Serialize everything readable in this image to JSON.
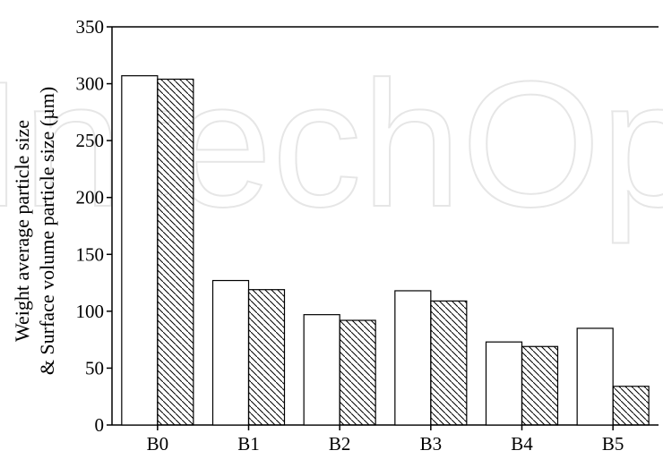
{
  "watermark": "IntechOpen",
  "chart_data": {
    "type": "bar",
    "categories": [
      "B0",
      "B1",
      "B2",
      "B3",
      "B4",
      "B5"
    ],
    "series": [
      {
        "values": [
          307,
          127,
          97,
          118,
          73,
          85
        ],
        "fill": "white"
      },
      {
        "values": [
          304,
          119,
          92,
          109,
          69,
          34
        ],
        "fill": "hatched"
      }
    ],
    "ylabel_line1": "Weight average particle size",
    "ylabel_line2": "& Surface volume  particle size (µm)",
    "ylim": [
      0,
      350
    ],
    "yticks": [
      0,
      50,
      100,
      150,
      200,
      250,
      300,
      350
    ],
    "grid": false,
    "legend": "none",
    "colors": {
      "stroke": "#000000",
      "background": "#ffffff",
      "watermark": "#e6e6e6"
    }
  }
}
